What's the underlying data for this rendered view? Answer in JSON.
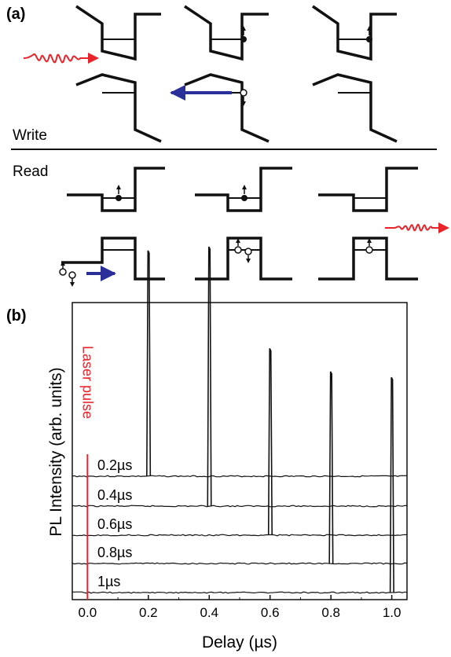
{
  "panel_a": {
    "label": "(a)",
    "write_label": "Write",
    "read_label": "Read"
  },
  "panel_b": {
    "label": "(b)"
  },
  "chart_data": {
    "type": "line",
    "xlabel": "Delay (µs)",
    "ylabel": "PL Intensity (arb. units)",
    "xlim": [
      -0.05,
      1.05
    ],
    "xticks": [
      "0.0",
      "0.2",
      "0.4",
      "0.6",
      "0.8",
      "1.0"
    ],
    "annotation": "Laser pulse",
    "laser_pulse_x": 0.0,
    "series": [
      {
        "name": "0.2µs",
        "peak_x": 0.2,
        "peak_height": 0.87
      },
      {
        "name": "0.4µs",
        "peak_x": 0.4,
        "peak_height": 1.0
      },
      {
        "name": "0.6µs",
        "peak_x": 0.6,
        "peak_height": 0.72
      },
      {
        "name": "0.8µs",
        "peak_x": 0.8,
        "peak_height": 0.74
      },
      {
        "name": "1µs",
        "peak_x": 1.0,
        "peak_height": 0.83
      }
    ],
    "colors": {
      "laser": "#e8232a",
      "trace": "#111111",
      "blue_arrow": "#2a2f9a"
    }
  }
}
